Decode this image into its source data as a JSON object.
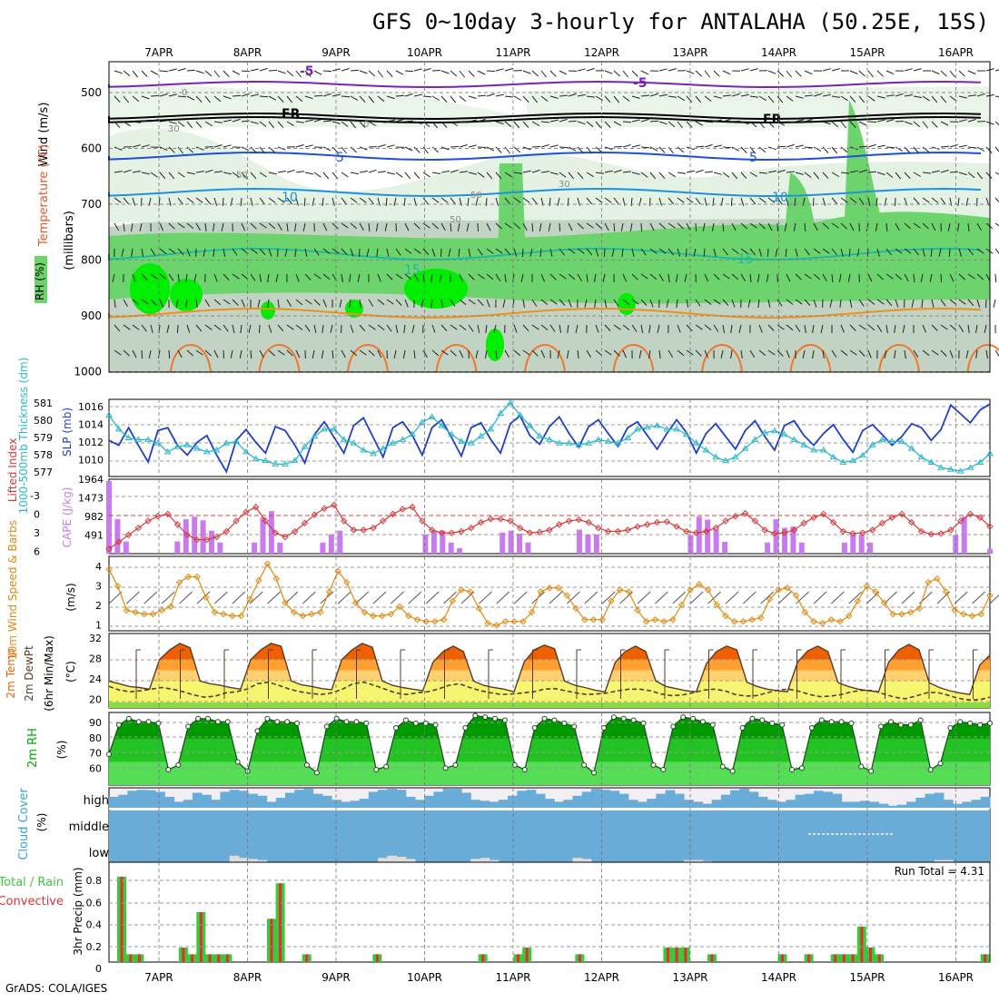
{
  "title": "GFS 0~10day 3-hourly for ANTALAHA (50.25E, 15S)",
  "footer": "GrADS: COLA/IGES",
  "dates": [
    "7APR",
    "8APR",
    "9APR",
    "10APR",
    "11APR",
    "12APR",
    "13APR",
    "14APR",
    "15APR",
    "16APR"
  ],
  "colors": {
    "rh_light": "#e3f2e3",
    "rh_mid": "#c3d3c3",
    "rh_high": "#6dd46d",
    "rh_max": "#00ee00",
    "slp": "#1f3fc8",
    "thickness": "#2ab8c8",
    "lifted": "#d83838",
    "cape": "#c87af0",
    "wind": "#e08a10",
    "temp_hot": "#ee6000",
    "temp_warm": "#ffa030",
    "temp_mild": "#ffd070",
    "temp_cool": "#f5f570",
    "rh2m_dark": "#009a00",
    "rh2m_mid": "#22c322",
    "rh2m_light": "#55dd55",
    "cloud": "#6aacd8",
    "cloud_gap": "#f2eef4",
    "precip_total": "#3cc83c",
    "precip_conv": "#e03030"
  },
  "panels": {
    "upper": {
      "labels": [
        "RH (%)",
        "Temperature (°C)",
        "Wind (m/s)"
      ],
      "pressure_label": "(millibars)",
      "yticks": [
        "500",
        "600",
        "700",
        "800",
        "900",
        "1000"
      ],
      "contour_labels": [
        "-5",
        "-5",
        "FR",
        "FR",
        "5",
        "5",
        "10",
        "10",
        "15",
        "15",
        "30",
        "50",
        "50",
        "50",
        "30",
        "0",
        "0"
      ]
    },
    "slp": {
      "label_thickness": "1000-500mb Thickness (dm)",
      "label_slp": "SLP (mb)",
      "left_ticks": [
        "581",
        "580",
        "579",
        "578",
        "577"
      ],
      "right_ticks": [
        "1016",
        "1014",
        "1012",
        "1010"
      ]
    },
    "cape": {
      "label_li": "Lifted Index",
      "label_cape": "CAPE (J/kg)",
      "left_ticks": [
        "-3",
        "0",
        "3",
        "6"
      ],
      "right_ticks": [
        "1964",
        "1473",
        "982",
        "491"
      ]
    },
    "wind10": {
      "label": "10m Wind Speed & Barbs",
      "unit": "(m/s)",
      "ticks": [
        "4",
        "3",
        "2",
        "1"
      ]
    },
    "temp": {
      "label": "2m Temp 2m DewPt (6hr Min/Max)",
      "unit": "(°C)",
      "ticks": [
        "32",
        "28",
        "24",
        "20"
      ]
    },
    "rh2m": {
      "label": "2m RH",
      "unit": "(%)",
      "ticks": [
        "90",
        "80",
        "70",
        "60"
      ]
    },
    "cloud": {
      "label": "Cloud Cover",
      "unit": "(%)",
      "levels": [
        "high",
        "middle",
        "low"
      ]
    },
    "precip": {
      "label_total": "Total / Rain",
      "label_conv": "Convective",
      "unit": "3hr Precip (mm)",
      "ticks": [
        "0.8",
        "0.6",
        "0.4",
        "0.2",
        "0"
      ],
      "run_total": "Run Total = 4.31"
    }
  },
  "chart_data": [
    {
      "type": "line",
      "name": "SLP",
      "ylabel": "SLP (mb)",
      "ylim": [
        1009,
        1016.5
      ],
      "values": [
        1012.5,
        1012,
        1013.8,
        1012,
        1010.3,
        1013.5,
        1013.8,
        1012,
        1011,
        1012.3,
        1013,
        1011,
        1009.3,
        1012.5,
        1013.6,
        1012.3,
        1011.2,
        1013.9,
        1013.5,
        1012,
        1010.2,
        1013.1,
        1014.4,
        1012.8,
        1011.2,
        1014,
        1014.8,
        1012.8,
        1010.8,
        1013.8,
        1014.4,
        1013,
        1011,
        1013.8,
        1014.6,
        1012.8,
        1010.9,
        1013.8,
        1014.3,
        1012.6,
        1011.2,
        1014.2,
        1015,
        1013,
        1012.1,
        1013.9,
        1014.9,
        1013.2,
        1011.8,
        1013.9,
        1014.6,
        1013.2,
        1011.9,
        1013.8,
        1014.4,
        1013,
        1011.6,
        1013.2,
        1014.6,
        1013.3,
        1011.2,
        1013.2,
        1014.2,
        1012.9,
        1011.6,
        1013.5,
        1014.5,
        1012.9,
        1011.5,
        1014,
        1014.5,
        1013,
        1012,
        1013.2,
        1014.1,
        1012.6,
        1011.3,
        1013.5,
        1014.1,
        1013.1,
        1012,
        1012.9,
        1014.2,
        1013.8,
        1012.5,
        1013.6,
        1016.1,
        1015.2,
        1014.3,
        1015.6,
        1016.2
      ]
    },
    {
      "type": "line",
      "name": "1000-500mb Thickness",
      "ylabel": "1000-500mb Thickness (dm)",
      "ylim": [
        576.8,
        581
      ],
      "values": [
        580.2,
        579.4,
        578.9,
        578.8,
        578.8,
        578.6,
        578.1,
        578.4,
        578.5,
        578.3,
        578.1,
        578.2,
        578.6,
        578.7,
        578.1,
        577.7,
        577.6,
        577.4,
        577.4,
        577.6,
        578.4,
        579,
        579.4,
        579.4,
        578.8,
        578.6,
        578.2,
        578,
        578.3,
        578.6,
        578.8,
        579.1,
        579.8,
        580.1,
        579.6,
        579.1,
        578.7,
        578.6,
        579,
        579.4,
        580.3,
        580.9,
        580.2,
        579.6,
        579,
        578.8,
        578.6,
        578.6,
        578.5,
        578.6,
        578.8,
        578.7,
        578.6,
        578.9,
        579.4,
        579.5,
        579.6,
        579.4,
        579.4,
        579.1,
        578.6,
        578.2,
        577.8,
        577.6,
        577.8,
        578.3,
        578.8,
        579.2,
        579.3,
        579.1,
        578.8,
        578.5,
        578.2,
        578.2,
        577.8,
        577.5,
        577.6,
        577.9,
        578.5,
        578.8,
        578.7,
        578.7,
        578.3,
        577.8,
        577.5,
        577.2,
        577.1,
        577,
        577.2,
        577.5,
        578
      ]
    },
    {
      "type": "line",
      "name": "Lifted Index",
      "ylabel": "Lifted Index",
      "ylim": [
        -4.2,
        6
      ],
      "values": [
        -3.5,
        -2.5,
        -1.5,
        -0.5,
        0.5,
        1.2,
        1.5,
        0,
        -1.5,
        -2.2,
        -2.2,
        -1.8,
        -1,
        0.5,
        1.8,
        2.5,
        0.5,
        -1.2,
        -1.8,
        -1,
        0.2,
        1.4,
        2.3,
        2.8,
        0.5,
        -0.8,
        -0.8,
        -0.5,
        0.5,
        1.5,
        2.2,
        2.5,
        0.5,
        -0.8,
        -1.2,
        -1.2,
        -1,
        -0.5,
        0.3,
        0.8,
        0.8,
        0.5,
        -0.5,
        -1.2,
        -1.1,
        -0.8,
        0,
        0.5,
        0.7,
        0.3,
        -0.5,
        -1,
        -1,
        -0.8,
        -0.3,
        0,
        0.3,
        0.4,
        -0.3,
        -1,
        -1.2,
        -1,
        -0.5,
        0.5,
        1.2,
        1.6,
        0.5,
        -0.8,
        -1.3,
        -1.2,
        -0.8,
        0.2,
        1,
        1.5,
        0.3,
        -1,
        -1.3,
        -1.2,
        -0.8,
        0.2,
        1,
        1.5,
        0.3,
        -1,
        -1.4,
        -1.3,
        -0.8,
        0.5,
        1.5,
        1,
        -0.3
      ]
    },
    {
      "type": "bar",
      "name": "CAPE",
      "ylabel": "CAPE (J/kg)",
      "ylim": [
        0,
        1964
      ],
      "values": [
        1964,
        930,
        330,
        0,
        0,
        0,
        0,
        0,
        330,
        930,
        1000,
        900,
        620,
        300,
        0,
        0,
        0,
        300,
        980,
        1150,
        300,
        0,
        0,
        0,
        0,
        300,
        520,
        620,
        0,
        0,
        0,
        0,
        0,
        0,
        0,
        0,
        0,
        520,
        620,
        620,
        300,
        150,
        0,
        0,
        0,
        0,
        570,
        620,
        540,
        300,
        0,
        0,
        0,
        0,
        0,
        650,
        520,
        520,
        0,
        0,
        0,
        0,
        0,
        0,
        0,
        0,
        0,
        0,
        500,
        1000,
        920,
        650,
        320,
        0,
        0,
        0,
        0,
        300,
        930,
        700,
        730,
        300,
        0,
        0,
        0,
        0,
        300,
        520,
        520,
        300,
        0,
        0,
        0,
        0,
        0,
        0,
        0,
        0,
        0,
        500,
        1000,
        0,
        0,
        130
      ]
    },
    {
      "type": "line",
      "name": "10m Wind Speed",
      "ylabel": "(m/s)",
      "ylim": [
        0.8,
        4.6
      ],
      "values": [
        4,
        3.1,
        1.8,
        1.7,
        1.6,
        1.6,
        1.8,
        2,
        3.3,
        3.6,
        3.6,
        2.5,
        1.7,
        1.6,
        1.5,
        1.5,
        2.4,
        3.4,
        4.3,
        3.5,
        2.2,
        1.7,
        1.5,
        1.6,
        1.7,
        2.8,
        3.9,
        3.3,
        2.2,
        1.7,
        1.5,
        1.5,
        1.6,
        2,
        1.5,
        1.3,
        1.2,
        1.2,
        1.3,
        2.3,
        2.9,
        2.8,
        1.9,
        1.1,
        1,
        1.2,
        1.2,
        1.2,
        1.7,
        2.8,
        3,
        3,
        2.6,
        1.9,
        1.3,
        1.3,
        1.3,
        2.3,
        2.9,
        2.8,
        1.8,
        1.2,
        1.3,
        1.2,
        1.3,
        2.1,
        2.9,
        3.2,
        2.9,
        2.1,
        1.5,
        1.2,
        1.2,
        1.3,
        1.4,
        2.4,
        2.9,
        3,
        2.6,
        1.7,
        1.2,
        1.1,
        1.3,
        1.2,
        1.5,
        2.3,
        3.1,
        2.8,
        2.2,
        1.6,
        1.6,
        1.7,
        1.9,
        3.3,
        3.5,
        2.8,
        1.8,
        1.6,
        1.5,
        1.6,
        2.6
      ]
    },
    {
      "type": "area",
      "name": "2m Temp",
      "ylabel": "(°C)",
      "ylim": [
        19,
        32.5
      ],
      "values": [
        24,
        23.5,
        23,
        22.8,
        22.5,
        28,
        29.8,
        31,
        30.2,
        24,
        23.5,
        23.2,
        22.8,
        22.5,
        28,
        29.8,
        31,
        30.5,
        24,
        23.3,
        23,
        22.6,
        22.4,
        28,
        29.8,
        31,
        30.3,
        24,
        23.2,
        22.8,
        22.5,
        22.2,
        27.5,
        29.5,
        30.5,
        29.5,
        24,
        23.2,
        22.8,
        22.5,
        22,
        27.5,
        29.8,
        30.7,
        30,
        24,
        23.2,
        22.8,
        22.3,
        22,
        27.5,
        29.5,
        30.5,
        29.5,
        24,
        23,
        22.6,
        22.2,
        22,
        27.2,
        29.5,
        30.5,
        29.8,
        23.8,
        23,
        22.5,
        22.2,
        22,
        27.5,
        29.6,
        30.5,
        29.5,
        23.7,
        23,
        22.5,
        22.2,
        22,
        27.5,
        29.8,
        30.8,
        29.8,
        23.7,
        22.8,
        22.2,
        21.8,
        21.5,
        27,
        28.8
      ]
    },
    {
      "type": "line",
      "name": "2m DewPt",
      "ylabel": "(°C)",
      "ylim": [
        19,
        32.5
      ],
      "values": [
        23,
        22.3,
        22,
        22.2,
        22.5,
        22.8,
        22.5,
        22,
        21.4,
        21,
        21.2,
        21.8,
        22,
        22.5,
        23.5,
        23.8,
        23.2,
        22.5,
        22,
        21.7,
        21.5,
        21.8,
        22.5,
        23.5,
        23.8,
        23.2,
        22.5,
        21.8,
        21.5,
        21.8,
        22,
        22.5,
        23.2,
        23.5,
        22.8,
        22.2,
        21.8,
        21.5,
        21.6,
        21.8,
        22,
        22.5,
        22.6,
        22.2,
        21.8,
        21.5,
        21.6,
        21.8,
        22.2,
        22.5,
        22.5,
        22.2,
        21.6,
        21.3,
        21.4,
        21.8,
        22.3,
        22.5,
        22.2,
        21.5,
        21.2,
        21.3,
        21.8,
        22.3,
        22.5,
        22.1,
        21.5,
        21.1,
        21.2,
        21.5,
        22,
        22.3,
        22.2,
        21.6,
        21,
        20.7,
        21.2,
        21.8,
        21.9,
        21.4,
        20.8,
        20.5,
        20.5,
        21
      ]
    },
    {
      "type": "area",
      "name": "2m RH",
      "ylabel": "(%)",
      "ylim": [
        50,
        97
      ],
      "values": [
        70,
        89,
        93,
        91,
        91,
        90,
        60,
        63,
        88,
        93,
        93,
        91,
        91,
        65,
        59,
        85,
        93,
        91,
        91,
        90,
        63,
        58,
        88,
        93,
        91,
        91,
        90,
        60,
        62,
        87,
        92,
        90,
        90,
        89,
        61,
        63,
        87,
        95,
        94,
        93,
        92,
        63,
        60,
        87,
        93,
        92,
        90,
        88,
        63,
        58,
        87,
        94,
        93,
        92,
        90,
        63,
        60,
        88,
        94,
        93,
        91,
        89,
        62,
        59,
        87,
        93,
        92,
        90,
        89,
        60,
        61,
        87,
        92,
        91,
        91,
        90,
        62,
        59,
        88,
        91,
        89,
        89,
        92,
        60,
        64,
        87,
        91,
        90,
        89,
        90
      ]
    },
    {
      "type": "bar",
      "name": "3hr Precip Total",
      "ylabel": "3hr Precip (mm)",
      "ylim": [
        0,
        0.9
      ],
      "categories_note": "3-hourly steps from 7APR 00Z",
      "values": [
        0.77,
        0.07,
        0.07,
        0,
        0,
        0,
        0,
        0.13,
        0.07,
        0.45,
        0.07,
        0.07,
        0.07,
        0,
        0,
        0,
        0,
        0.39,
        0.71,
        0,
        0,
        0.07,
        0,
        0,
        0,
        0,
        0,
        0,
        0,
        0.07,
        0,
        0,
        0,
        0,
        0,
        0,
        0,
        0,
        0,
        0,
        0,
        0.07,
        0,
        0,
        0,
        0.07,
        0.13,
        0,
        0,
        0,
        0,
        0,
        0.07,
        0,
        0,
        0,
        0,
        0,
        0,
        0,
        0,
        0,
        0.13,
        0.13,
        0.13,
        0,
        0,
        0.07,
        0,
        0,
        0,
        0,
        0,
        0,
        0,
        0.07,
        0,
        0,
        0.07,
        0,
        0,
        0.07,
        0.07,
        0.07,
        0.32,
        0.13,
        0.07,
        0,
        0,
        0,
        0,
        0,
        0,
        0,
        0,
        0,
        0,
        0,
        0.07,
        0,
        0,
        0
      ]
    },
    {
      "type": "bar",
      "name": "Cloud Cover",
      "ylabel": "(%)",
      "ylim": [
        0,
        100
      ],
      "high": [
        55,
        65,
        85,
        90,
        88,
        80,
        55,
        30,
        40,
        75,
        65,
        40,
        80,
        90,
        85,
        70,
        60,
        30,
        50,
        75,
        90,
        95,
        70,
        60,
        40,
        30,
        35,
        45,
        80,
        90,
        95,
        90,
        55,
        40,
        60,
        80,
        95,
        95,
        75,
        40,
        35,
        30,
        40,
        60,
        85,
        90,
        70,
        45,
        30,
        40,
        60,
        80,
        95,
        90,
        85,
        70,
        40,
        30,
        45,
        70,
        88,
        70,
        40,
        30,
        20,
        40,
        65,
        88,
        95,
        80,
        55,
        40,
        30,
        40,
        65,
        70,
        85,
        80,
        70,
        30,
        30,
        35,
        30,
        20,
        10,
        15,
        30,
        50,
        70,
        75,
        40,
        20,
        30,
        40,
        55
      ],
      "low": [
        0,
        0,
        0,
        0,
        0,
        0,
        0,
        0,
        0,
        0,
        0,
        0,
        0,
        30,
        20,
        15,
        10,
        0,
        0,
        0,
        0,
        0,
        0,
        0,
        0,
        0,
        0,
        0,
        0,
        20,
        30,
        25,
        15,
        0,
        0,
        0,
        0,
        0,
        0,
        15,
        20,
        10,
        0,
        0,
        0,
        0,
        0,
        0,
        0,
        0,
        20,
        15,
        0,
        0,
        0,
        0,
        0,
        0,
        0,
        0,
        0,
        0,
        10,
        10,
        5,
        0,
        0,
        0,
        0,
        0,
        0,
        0,
        0,
        0,
        0,
        0,
        0,
        0,
        0,
        0,
        0,
        0,
        0,
        0,
        0,
        0,
        0,
        0,
        0,
        10,
        10,
        0,
        0,
        0,
        0
      ]
    }
  ]
}
